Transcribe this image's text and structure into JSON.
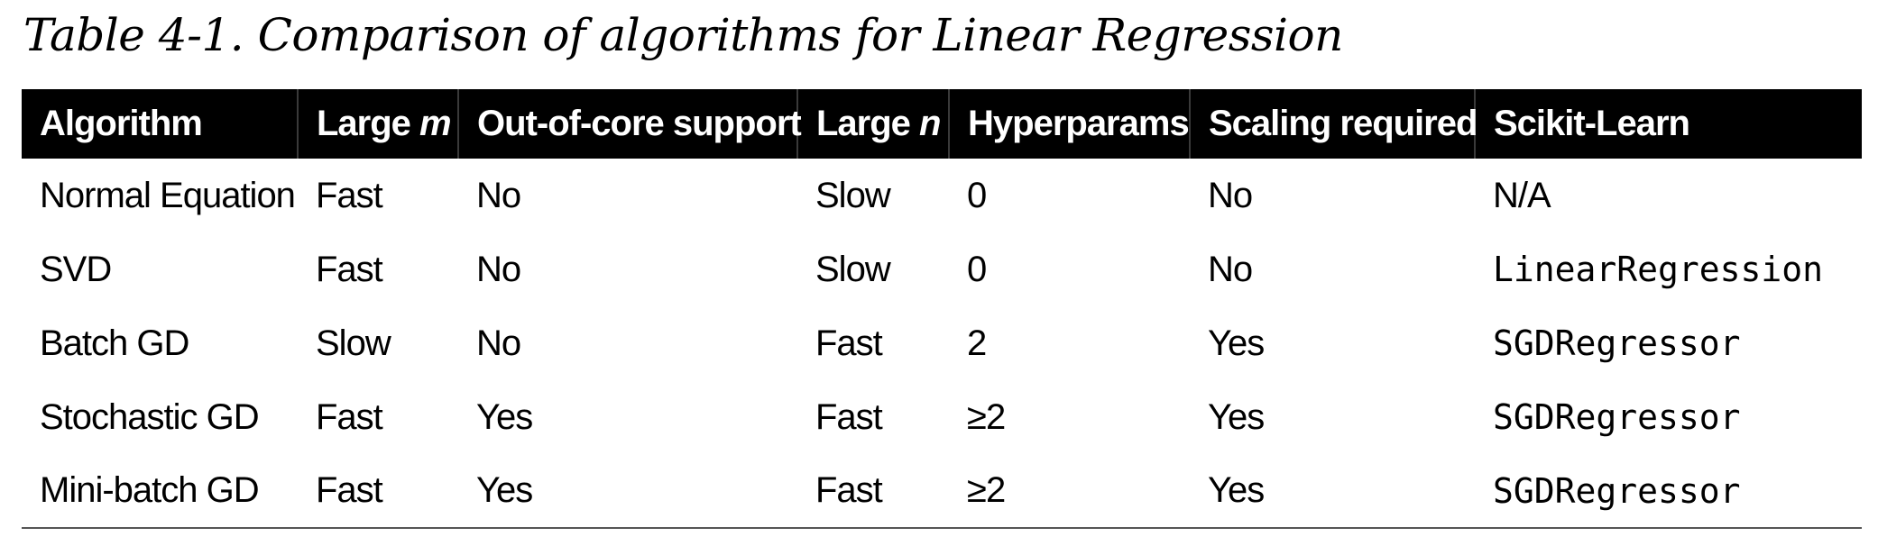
{
  "caption": "Table 4-1. Comparison of algorithms for Linear Regression",
  "header": {
    "algorithm": "Algorithm",
    "large_m_prefix": "Large ",
    "large_m_var": "m",
    "out_of_core": "Out-of-core support",
    "large_n_prefix": "Large ",
    "large_n_var": "n",
    "hyperparams": "Hyperparams",
    "scaling": "Scaling required",
    "sklearn": "Scikit-Learn"
  },
  "rows": [
    {
      "algorithm": "Normal Equation",
      "large_m": "Fast",
      "out_of_core": "No",
      "large_n": "Slow",
      "hyperparams": "0",
      "scaling": "No",
      "sklearn": "N/A"
    },
    {
      "algorithm": "SVD",
      "large_m": "Fast",
      "out_of_core": "No",
      "large_n": "Slow",
      "hyperparams": "0",
      "scaling": "No",
      "sklearn": "LinearRegression"
    },
    {
      "algorithm": "Batch GD",
      "large_m": "Slow",
      "out_of_core": "No",
      "large_n": "Fast",
      "hyperparams": "2",
      "scaling": "Yes",
      "sklearn": "SGDRegressor"
    },
    {
      "algorithm": "Stochastic GD",
      "large_m": "Fast",
      "out_of_core": "Yes",
      "large_n": "Fast",
      "hyperparams": "≥2",
      "scaling": "Yes",
      "sklearn": "SGDRegressor"
    },
    {
      "algorithm": "Mini-batch GD",
      "large_m": "Fast",
      "out_of_core": "Yes",
      "large_n": "Fast",
      "hyperparams": "≥2",
      "scaling": "Yes",
      "sklearn": "SGDRegressor"
    }
  ]
}
